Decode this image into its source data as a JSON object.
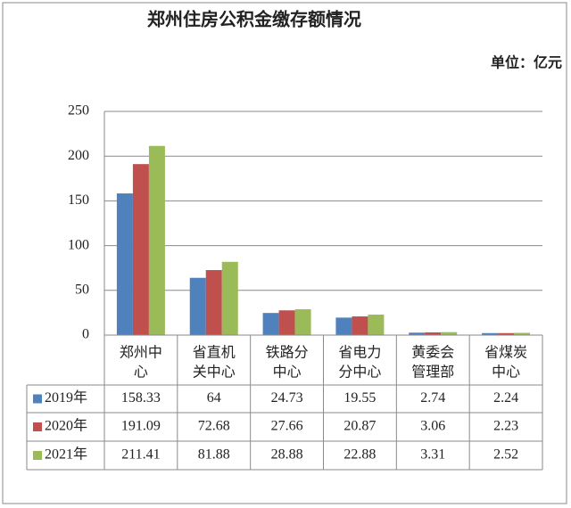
{
  "chart_data": {
    "type": "bar",
    "title": "郑州住房公积金缴存额情况",
    "unit": "单位：亿元",
    "categories": [
      [
        "郑州中",
        "心"
      ],
      [
        "省直机",
        "关中心"
      ],
      [
        "铁路分",
        "中心"
      ],
      [
        "省电力",
        "分中心"
      ],
      [
        "黄委会",
        "管理部"
      ],
      [
        "省煤炭",
        "中心"
      ]
    ],
    "series": [
      {
        "name": "2019年",
        "color": "#4f81bd",
        "values": [
          158.33,
          64,
          24.73,
          19.55,
          2.74,
          2.24
        ]
      },
      {
        "name": "2020年",
        "color": "#c0504d",
        "values": [
          191.09,
          72.68,
          27.66,
          20.87,
          3.06,
          2.23
        ]
      },
      {
        "name": "2021年",
        "color": "#9bbb59",
        "values": [
          211.41,
          81.88,
          28.88,
          22.88,
          3.31,
          2.52
        ]
      }
    ],
    "ylim": [
      0,
      250
    ],
    "yticks": [
      0,
      50,
      100,
      150,
      200,
      250
    ],
    "grid": true
  }
}
